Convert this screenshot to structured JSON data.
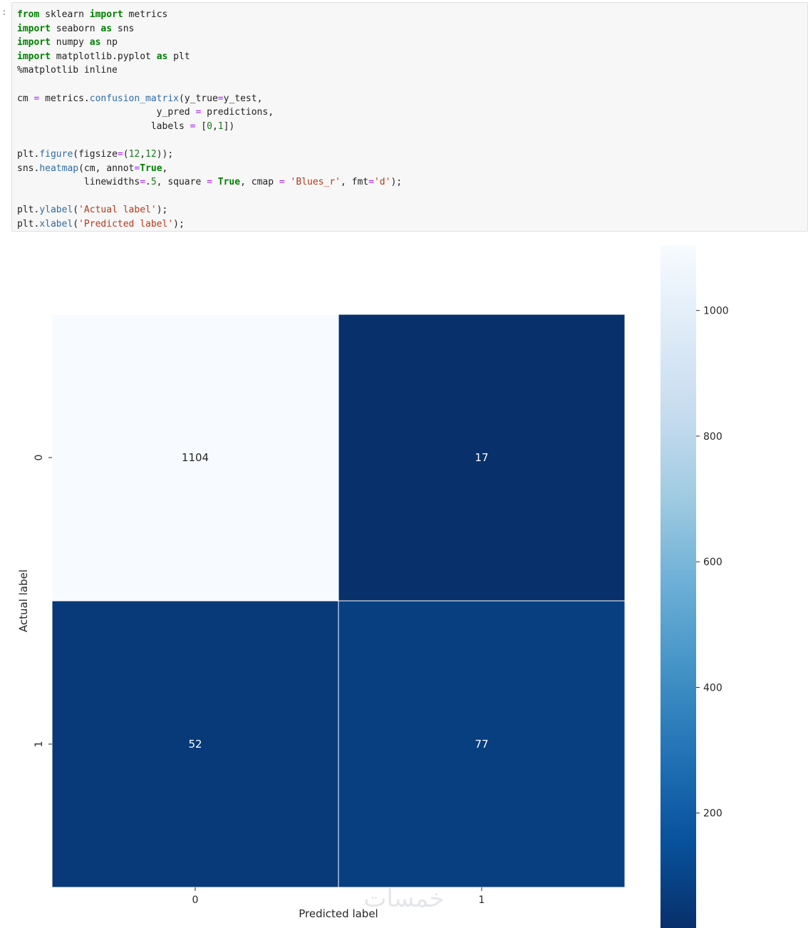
{
  "cell": {
    "prompt": ":",
    "lines": [
      [
        {
          "t": "from",
          "c": "kw"
        },
        {
          "t": " sklearn "
        },
        {
          "t": "import",
          "c": "kw"
        },
        {
          "t": " metrics"
        }
      ],
      [
        {
          "t": "import",
          "c": "kw"
        },
        {
          "t": " seaborn "
        },
        {
          "t": "as",
          "c": "kw"
        },
        {
          "t": " sns"
        }
      ],
      [
        {
          "t": "import",
          "c": "kw"
        },
        {
          "t": " numpy "
        },
        {
          "t": "as",
          "c": "kw"
        },
        {
          "t": " np"
        }
      ],
      [
        {
          "t": "import",
          "c": "kw"
        },
        {
          "t": " matplotlib.pyplot "
        },
        {
          "t": "as",
          "c": "kw"
        },
        {
          "t": " plt"
        }
      ],
      [
        {
          "t": "%matplotlib inline"
        }
      ],
      [
        {
          "t": ""
        }
      ],
      [
        {
          "t": "cm "
        },
        {
          "t": "=",
          "c": "op"
        },
        {
          "t": " metrics."
        },
        {
          "t": "confusion_matrix",
          "c": "fn"
        },
        {
          "t": "(y_true"
        },
        {
          "t": "=",
          "c": "op"
        },
        {
          "t": "y_test,"
        }
      ],
      [
        {
          "t": "                         y_pred "
        },
        {
          "t": "=",
          "c": "op"
        },
        {
          "t": " predictions,"
        }
      ],
      [
        {
          "t": "                        labels "
        },
        {
          "t": "=",
          "c": "op"
        },
        {
          "t": " ["
        },
        {
          "t": "0",
          "c": "num"
        },
        {
          "t": ","
        },
        {
          "t": "1",
          "c": "num"
        },
        {
          "t": "])"
        }
      ],
      [
        {
          "t": ""
        }
      ],
      [
        {
          "t": "plt."
        },
        {
          "t": "figure",
          "c": "fn"
        },
        {
          "t": "(figsize"
        },
        {
          "t": "=",
          "c": "op"
        },
        {
          "t": "("
        },
        {
          "t": "12",
          "c": "num"
        },
        {
          "t": ","
        },
        {
          "t": "12",
          "c": "num"
        },
        {
          "t": "));"
        }
      ],
      [
        {
          "t": "sns."
        },
        {
          "t": "heatmap",
          "c": "fn"
        },
        {
          "t": "(cm, annot"
        },
        {
          "t": "=",
          "c": "op"
        },
        {
          "t": "True",
          "c": "kw"
        },
        {
          "t": ","
        }
      ],
      [
        {
          "t": "            linewidths"
        },
        {
          "t": "=",
          "c": "op"
        },
        {
          "t": "."
        },
        {
          "t": "5",
          "c": "num"
        },
        {
          "t": ", square "
        },
        {
          "t": "=",
          "c": "op"
        },
        {
          "t": " "
        },
        {
          "t": "True",
          "c": "kw"
        },
        {
          "t": ", cmap "
        },
        {
          "t": "=",
          "c": "op"
        },
        {
          "t": " "
        },
        {
          "t": "'Blues_r'",
          "c": "str"
        },
        {
          "t": ", fmt"
        },
        {
          "t": "=",
          "c": "op"
        },
        {
          "t": "'d'",
          "c": "str"
        },
        {
          "t": ");"
        }
      ],
      [
        {
          "t": ""
        }
      ],
      [
        {
          "t": "plt."
        },
        {
          "t": "ylabel",
          "c": "fn"
        },
        {
          "t": "("
        },
        {
          "t": "'Actual label'",
          "c": "str"
        },
        {
          "t": ");"
        }
      ],
      [
        {
          "t": "plt."
        },
        {
          "t": "xlabel",
          "c": "fn"
        },
        {
          "t": "("
        },
        {
          "t": "'Predicted label'",
          "c": "str"
        },
        {
          "t": ");"
        }
      ]
    ]
  },
  "chart_data": {
    "type": "heatmap",
    "x_categories": [
      "0",
      "1"
    ],
    "y_categories": [
      "0",
      "1"
    ],
    "values": [
      [
        1104,
        17
      ],
      [
        52,
        77
      ]
    ],
    "xlabel": "Predicted label",
    "ylabel": "Actual label",
    "colormap": "Blues_r",
    "colorbar": {
      "range": [
        17,
        1104
      ],
      "ticks": [
        200,
        400,
        600,
        800,
        1000
      ],
      "tick_labels": [
        "200",
        "400",
        "600",
        "800",
        "1000"
      ]
    },
    "cmap_stops": [
      "#08306b",
      "#08519c",
      "#2171b5",
      "#4292c6",
      "#6baed6",
      "#9ecae1",
      "#c6dbef",
      "#deebf7",
      "#f7fbff"
    ]
  },
  "watermark": "خمسات"
}
